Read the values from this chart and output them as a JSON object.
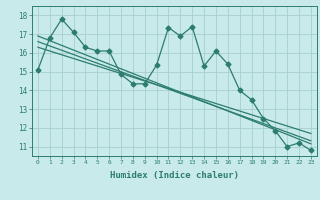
{
  "x": [
    0,
    1,
    2,
    3,
    4,
    5,
    6,
    7,
    8,
    9,
    10,
    11,
    12,
    13,
    14,
    15,
    16,
    17,
    18,
    19,
    20,
    21,
    22,
    23
  ],
  "y_main": [
    15.1,
    16.8,
    17.8,
    17.1,
    16.3,
    16.1,
    16.1,
    14.85,
    14.35,
    14.35,
    15.35,
    17.35,
    16.9,
    17.4,
    15.3,
    16.1,
    15.4,
    14.0,
    13.5,
    12.5,
    11.85,
    11.0,
    11.2,
    10.8
  ],
  "y_trend1": [
    16.9,
    16.65,
    16.4,
    16.15,
    15.9,
    15.65,
    15.4,
    15.15,
    14.9,
    14.65,
    14.4,
    14.15,
    13.9,
    13.65,
    13.4,
    13.15,
    12.9,
    12.65,
    12.4,
    12.15,
    11.9,
    11.65,
    11.4,
    11.15
  ],
  "y_trend2": [
    16.6,
    16.37,
    16.14,
    15.91,
    15.68,
    15.45,
    15.22,
    14.99,
    14.76,
    14.53,
    14.3,
    14.07,
    13.84,
    13.61,
    13.38,
    13.15,
    12.92,
    12.69,
    12.46,
    12.23,
    12.0,
    11.77,
    11.54,
    11.31
  ],
  "y_trend3": [
    16.3,
    16.1,
    15.9,
    15.7,
    15.5,
    15.3,
    15.1,
    14.9,
    14.7,
    14.5,
    14.3,
    14.1,
    13.9,
    13.7,
    13.5,
    13.3,
    13.1,
    12.9,
    12.7,
    12.5,
    12.3,
    12.1,
    11.9,
    11.7
  ],
  "line_color": "#2d7d6e",
  "bg_color": "#c8eaea",
  "grid_color": "#a8cece",
  "xlabel": "Humidex (Indice chaleur)",
  "ylim": [
    10.5,
    18.5
  ],
  "xlim": [
    -0.5,
    23.5
  ],
  "ytick_vals": [
    11,
    12,
    13,
    14,
    15,
    16,
    17,
    18
  ],
  "marker": "D",
  "markersize": 2.5,
  "linewidth": 0.9
}
